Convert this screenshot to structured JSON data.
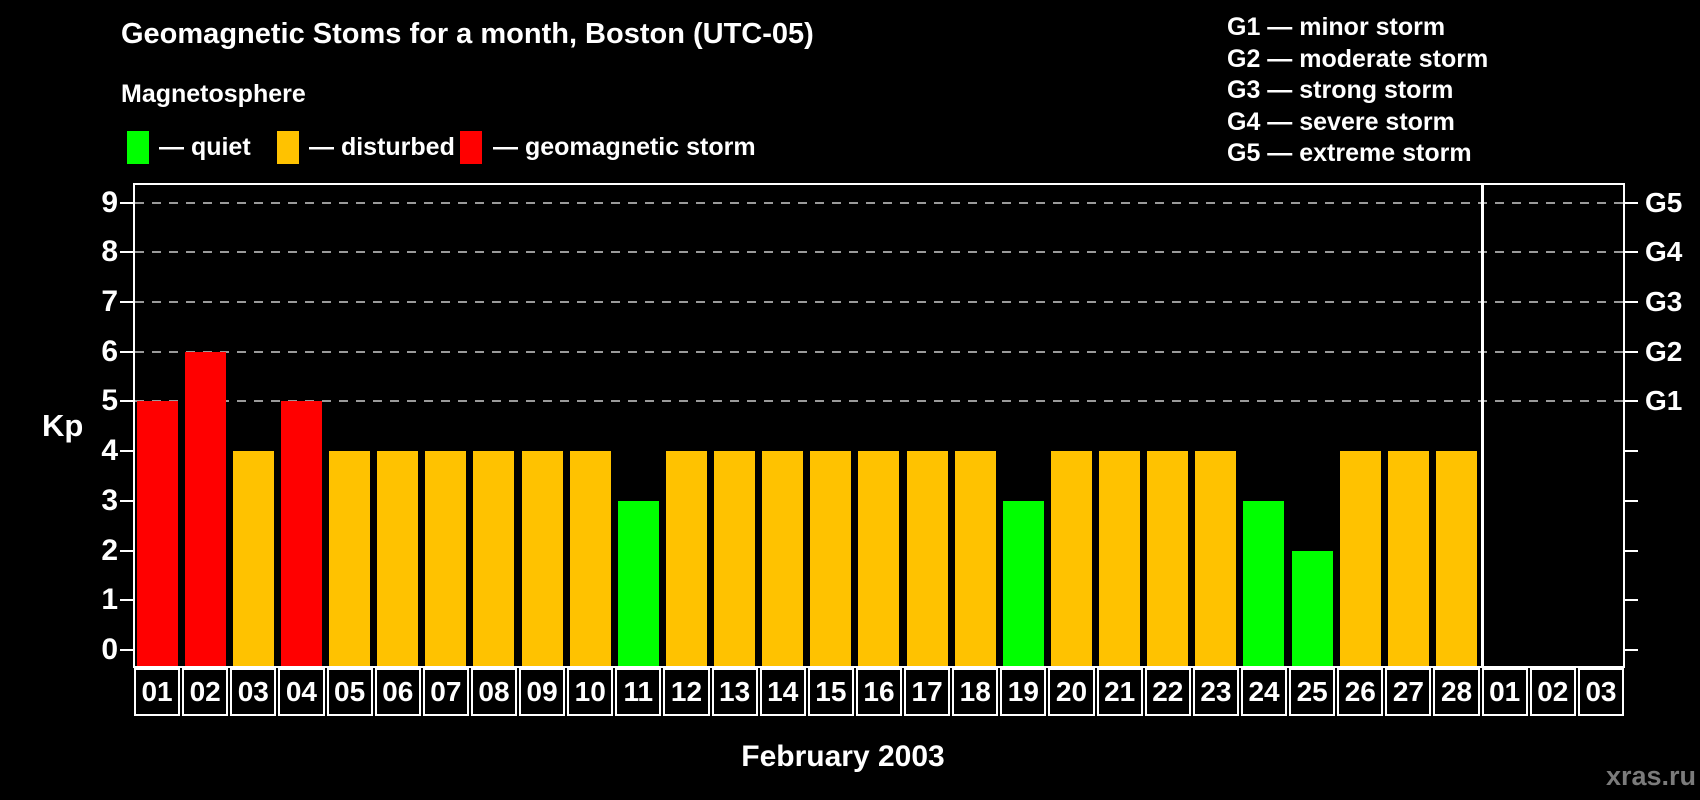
{
  "title": "Geomagnetic Stoms for a month, Boston (UTC-05)",
  "subtitle": "Magnetosphere",
  "legend": {
    "items": [
      {
        "key": "quiet",
        "label": "— quiet",
        "color": "#00ff00"
      },
      {
        "key": "disturbed",
        "label": "— disturbed",
        "color": "#ffc200"
      },
      {
        "key": "storm",
        "label": "— geomagnetic storm",
        "color": "#ff0000"
      }
    ]
  },
  "g_scale_legend": [
    "G1 — minor storm",
    "G2 — moderate storm",
    "G3 — strong storm",
    "G4 — severe storm",
    "G5 — extreme storm"
  ],
  "watermark": "xras.ru",
  "chart_data": {
    "type": "bar",
    "title": "Geomagnetic Stoms for a month, Boston (UTC-05)",
    "xlabel": "February 2003",
    "ylabel": "Kp",
    "ylim": [
      0,
      9
    ],
    "y_ticks": [
      0,
      1,
      2,
      3,
      4,
      5,
      6,
      7,
      8,
      9
    ],
    "grid_dashed_at": [
      5,
      6,
      7,
      8,
      9
    ],
    "right_axis_labels": [
      {
        "kp": 5,
        "label": "G1"
      },
      {
        "kp": 6,
        "label": "G2"
      },
      {
        "kp": 7,
        "label": "G3"
      },
      {
        "kp": 8,
        "label": "G4"
      },
      {
        "kp": 9,
        "label": "G5"
      }
    ],
    "feb_day_count": 28,
    "categories": [
      "01",
      "02",
      "03",
      "04",
      "05",
      "06",
      "07",
      "08",
      "09",
      "10",
      "11",
      "12",
      "13",
      "14",
      "15",
      "16",
      "17",
      "18",
      "19",
      "20",
      "21",
      "22",
      "23",
      "24",
      "25",
      "26",
      "27",
      "28",
      "01",
      "02",
      "03"
    ],
    "values": [
      5,
      6,
      4,
      5,
      4,
      4,
      4,
      4,
      4,
      4,
      3,
      4,
      4,
      4,
      4,
      4,
      4,
      4,
      3,
      4,
      4,
      4,
      4,
      3,
      2,
      4,
      4,
      4,
      null,
      null,
      null
    ],
    "statuses": [
      "storm",
      "storm",
      "disturbed",
      "storm",
      "disturbed",
      "disturbed",
      "disturbed",
      "disturbed",
      "disturbed",
      "disturbed",
      "quiet",
      "disturbed",
      "disturbed",
      "disturbed",
      "disturbed",
      "disturbed",
      "disturbed",
      "disturbed",
      "quiet",
      "disturbed",
      "disturbed",
      "disturbed",
      "disturbed",
      "quiet",
      "quiet",
      "disturbed",
      "disturbed",
      "disturbed",
      null,
      null,
      null
    ],
    "colors": {
      "quiet": "#00ff00",
      "disturbed": "#ffc200",
      "storm": "#ff0000"
    }
  }
}
